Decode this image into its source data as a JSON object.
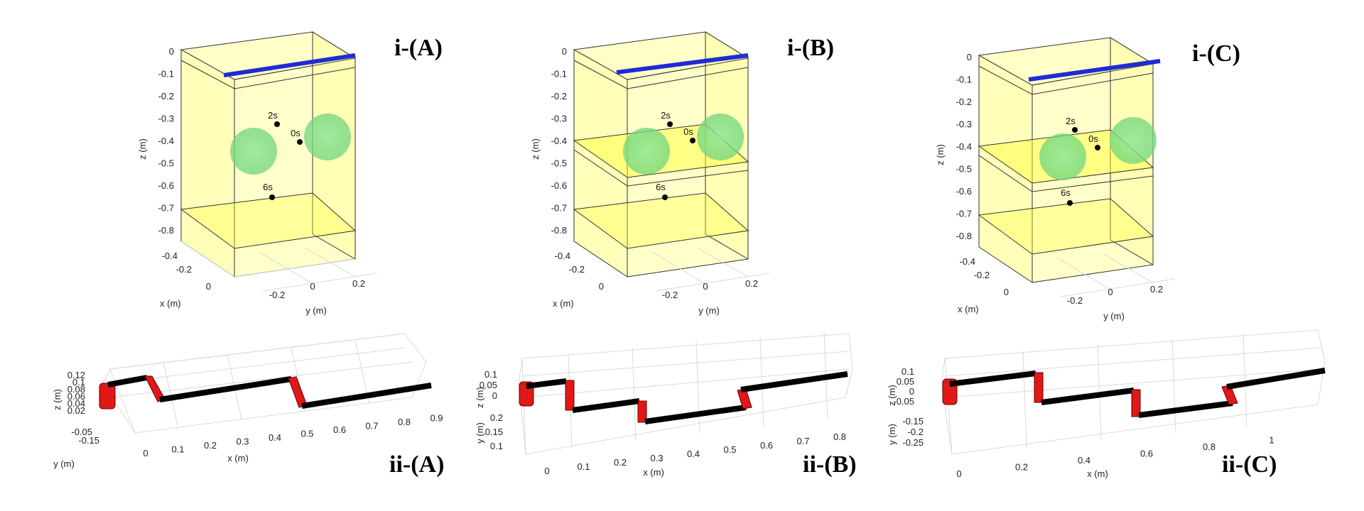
{
  "panels_top": [
    {
      "title": "i-(A)",
      "z_ticks": [
        "0",
        "-0.1",
        "-0.2",
        "-0.3",
        "-0.4",
        "-0.5",
        "-0.6",
        "-0.7",
        "-0.8"
      ],
      "x_ticks": [
        "-0.4",
        "-0.2",
        "0"
      ],
      "y_ticks": [
        "-0.2",
        "0",
        "0.2"
      ],
      "z_label": "z (m)",
      "x_label": "x (m)",
      "y_label": "y (m)",
      "points": [
        {
          "label": "2s"
        },
        {
          "label": "0s"
        },
        {
          "label": "6s"
        }
      ]
    },
    {
      "title": "i-(B)",
      "z_ticks": [
        "0",
        "-0.1",
        "-0.2",
        "-0.3",
        "-0.4",
        "-0.5",
        "-0.6",
        "-0.7",
        "-0.8"
      ],
      "x_ticks": [
        "-0.4",
        "-0.2",
        "0"
      ],
      "y_ticks": [
        "-0.2",
        "0",
        "0.2"
      ],
      "z_label": "z (m)",
      "x_label": "x (m)",
      "y_label": "y (m)",
      "points": [
        {
          "label": "2s"
        },
        {
          "label": "0s"
        },
        {
          "label": "6s"
        }
      ]
    },
    {
      "title": "i-(C)",
      "z_ticks": [
        "0",
        "-0.1",
        "-0.2",
        "-0.3",
        "-0.4",
        "-0.5",
        "-0.6",
        "-0.7",
        "-0.8"
      ],
      "x_ticks": [
        "-0.4",
        "-0.2",
        "0"
      ],
      "y_ticks": [
        "-0.2",
        "0",
        "0.2"
      ],
      "z_label": "z (m)",
      "x_label": "x (m)",
      "y_label": "y (m)",
      "points": [
        {
          "label": "2s"
        },
        {
          "label": "0s"
        },
        {
          "label": "6s"
        }
      ]
    }
  ],
  "panels_bottom": [
    {
      "title": "ii-(A)",
      "z_ticks": [
        "0.12",
        "0.1",
        "0.08",
        "0.06",
        "0.04",
        "0.02"
      ],
      "y_ticks": [
        "-0.05",
        "-0.15"
      ],
      "x_ticks": [
        "0",
        "0.1",
        "0.2",
        "0.3",
        "0.4",
        "0.5",
        "0.6",
        "0.7",
        "0.8",
        "0.9"
      ],
      "z_label": "z (m)",
      "y_label": "y (m)",
      "x_label": "x (m)"
    },
    {
      "title": "ii-(B)",
      "z_ticks": [
        "0.1",
        "0.05",
        "0"
      ],
      "y_ticks": [
        "0.2",
        "0.15",
        "0.1"
      ],
      "x_ticks": [
        "0",
        "0.1",
        "0.2",
        "0.3",
        "0.4",
        "0.5",
        "0.6",
        "0.7",
        "0.8"
      ],
      "z_label": "z (m)",
      "y_label": "y (m)",
      "x_label": "x (m)"
    },
    {
      "title": "ii-(C)",
      "z_ticks": [
        "0.1",
        "0.05",
        "0",
        "-0.05"
      ],
      "y_ticks": [
        "-0.15",
        "-0.2",
        "-0.25"
      ],
      "x_ticks": [
        "0",
        "0.2",
        "0.4",
        "0.6",
        "0.8",
        "1"
      ],
      "z_label": "z (m)",
      "y_label": "y (m)",
      "x_label": "x (m)"
    }
  ],
  "colors": {
    "box_fill": "#ffff66",
    "box_edge": "#222222",
    "bar": "#1f2bd6",
    "sphere": "#7fe08a",
    "point": "#000000",
    "link": "#000000",
    "joint": "#e01818",
    "grid": "#d9d9d9"
  }
}
